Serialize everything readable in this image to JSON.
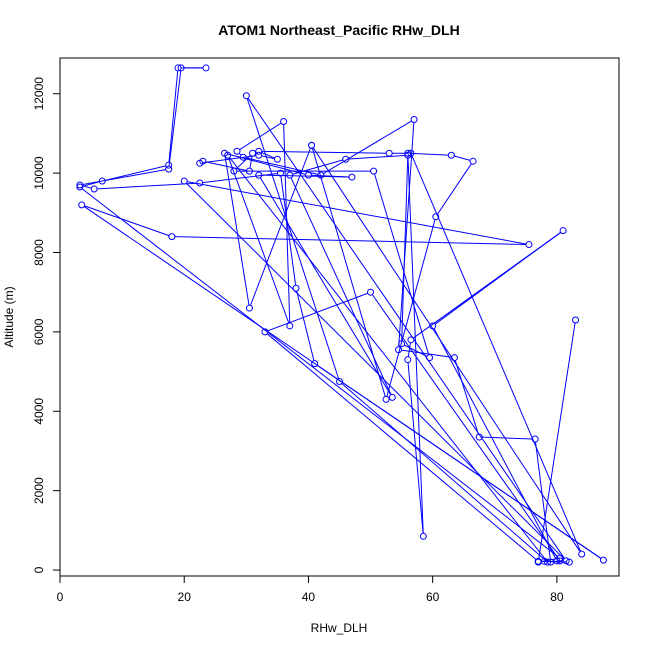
{
  "chart_data": {
    "type": "line",
    "title": "ATOM1 Northeast_Pacific RHw_DLH",
    "xlabel": "RHw_DLH",
    "ylabel": "Altitude (m)",
    "xlim": [
      0,
      90
    ],
    "ylim": [
      -150,
      12900
    ],
    "x_ticks": [
      0,
      20,
      40,
      60,
      80
    ],
    "y_ticks": [
      0,
      2000,
      4000,
      6000,
      8000,
      10000,
      12000
    ],
    "grid": false,
    "line_color": "#0000ff",
    "series": [
      {
        "x": [
          83.0,
          77.0,
          80.5,
          3.2,
          6.8,
          17.5,
          19.0,
          23.5,
          19.5,
          17.5,
          3.2,
          5.5,
          22.5,
          35.5,
          38.0,
          41.0,
          87.5,
          3.5,
          18.0,
          75.5,
          20.0,
          81.5,
          30.0,
          45.0,
          78.5,
          27.0,
          37.0,
          36.0,
          28.5,
          29.5,
          42.0,
          57.0,
          54.5,
          63.5,
          67.5,
          76.5,
          79.0,
          78.0,
          82.0,
          77.0,
          33.0,
          50.0,
          80.5,
          80.0,
          60.0,
          81.0,
          56.5,
          56.0,
          58.5,
          56.0,
          63.0,
          66.5,
          60.5,
          52.5,
          40.5,
          30.5,
          26.5,
          40.0,
          47.0,
          32.0,
          53.5,
          37.0,
          46.0,
          56.0,
          55.0,
          59.5,
          50.5,
          28.0,
          31.0,
          30.5,
          23.0,
          22.5,
          32.0,
          35.0,
          32.0,
          53.0,
          56.5,
          84.0,
          40.5
        ],
        "y": [
          6300,
          200,
          300,
          9650,
          9800,
          10200,
          12650,
          12650,
          12650,
          10100,
          9700,
          9600,
          9750,
          10000,
          7100,
          5200,
          250,
          9200,
          8400,
          8200,
          9800,
          230,
          11950,
          4750,
          200,
          10450,
          6150,
          11300,
          10550,
          10400,
          9950,
          11350,
          5550,
          5350,
          3350,
          3300,
          200,
          220,
          200,
          220,
          6000,
          7000,
          230,
          230,
          6150,
          8550,
          5800,
          5300,
          850,
          10500,
          10450,
          10300,
          8900,
          4300,
          10700,
          6600,
          10500,
          9950,
          9900,
          9950,
          4350,
          9950,
          10350,
          10450,
          5700,
          5350,
          10050,
          10050,
          10500,
          10050,
          10300,
          10250,
          10450,
          10350,
          10550,
          10500,
          10500,
          400,
          10700
        ]
      }
    ]
  }
}
